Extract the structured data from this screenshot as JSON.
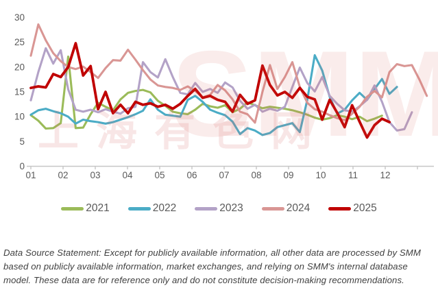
{
  "watermark": {
    "logo_text": "SMM",
    "cn_text": "上海有色网",
    "base_color_rgb": "214,106,104"
  },
  "footer": {
    "text": "Data Source Statement: Except for publicly available information, all other data are processed by SMM based on publicly available information, market exchanges, and relying on SMM's internal database model. These data are for reference only and do not constitute decision-making recommendations."
  },
  "chart_data": {
    "type": "line",
    "title": "",
    "xlabel": "",
    "ylabel": "",
    "grid": false,
    "legend_position": "bottom",
    "x_axis": {
      "labels": [
        "01",
        "02",
        "03",
        "04",
        "05",
        "06",
        "07",
        "08",
        "09",
        "10",
        "11",
        "12"
      ],
      "tick_color": "#c6c6c6",
      "label_color": "#595959"
    },
    "y_axis": {
      "min": 0,
      "max": 30,
      "ticks": [
        0,
        5,
        10,
        15,
        20,
        25,
        30
      ],
      "label_color": "#595959"
    },
    "series": [
      {
        "name": "2021",
        "color": "#9BBB59",
        "values": [
          10.3,
          9.2,
          7.6,
          7.7,
          8.7,
          22.1,
          7.7,
          7.8,
          10.5,
          12.8,
          12.0,
          11.3,
          13.5,
          14.8,
          15.2,
          15.4,
          14.9,
          13.2,
          12.2,
          11.0,
          10.7,
          10.5,
          11.4,
          12.6,
          12.1,
          11.8,
          12.3,
          10.9,
          11.6,
          12.9,
          12.3,
          11.7,
          12.0,
          11.8,
          11.6,
          11.3,
          10.9,
          10.4,
          9.8,
          9.4,
          9.7,
          10.3,
          10.0,
          9.5,
          10.0,
          9.1,
          9.6,
          10.2
        ]
      },
      {
        "name": "2022",
        "color": "#4BACC6",
        "values": [
          10.4,
          11.3,
          11.6,
          11.1,
          10.7,
          10.0,
          8.6,
          9.4,
          9.1,
          8.9,
          8.6,
          8.9,
          9.4,
          9.9,
          10.5,
          11.2,
          13.5,
          11.4,
          10.4,
          10.2,
          10.0,
          13.4,
          14.2,
          13.0,
          11.4,
          10.8,
          10.3,
          9.0,
          6.5,
          7.7,
          7.2,
          6.3,
          6.7,
          7.9,
          8.3,
          8.7,
          6.9,
          13.4,
          22.4,
          19.3,
          14.0,
          10.6,
          11.4,
          13.3,
          14.8,
          13.4,
          15.6,
          17.6,
          14.6,
          16.0
        ]
      },
      {
        "name": "2023",
        "color": "#B3A2C7",
        "values": [
          13.3,
          19.0,
          23.8,
          20.7,
          23.4,
          15.5,
          11.4,
          11.0,
          11.4,
          10.9,
          11.5,
          11.0,
          10.6,
          11.7,
          12.0,
          21.0,
          19.0,
          17.9,
          21.6,
          18.0,
          14.8,
          14.5,
          16.8,
          15.0,
          15.6,
          14.8,
          16.9,
          15.9,
          13.2,
          11.6,
          12.4,
          11.0,
          11.6,
          11.2,
          12.0,
          16.0,
          19.9,
          16.8,
          15.1,
          18.0,
          14.2,
          12.6,
          11.3,
          11.0,
          12.1,
          13.4,
          16.3,
          13.0,
          8.9,
          7.2,
          7.5,
          10.9
        ]
      },
      {
        "name": "2024",
        "color": "#D99694",
        "values": [
          22.3,
          28.6,
          25.4,
          22.8,
          21.2,
          20.0,
          19.6,
          20.1,
          19.0,
          17.8,
          19.8,
          21.4,
          21.3,
          23.5,
          21.5,
          19.4,
          17.5,
          16.3,
          16.0,
          15.8,
          15.4,
          16.1,
          15.2,
          13.9,
          14.4,
          16.4,
          15.3,
          13.5,
          11.0,
          10.5,
          8.8,
          15.0,
          20.4,
          15.6,
          18.0,
          21.0,
          16.0,
          12.8,
          11.5,
          11.0,
          10.3,
          9.7,
          9.3,
          10.6,
          12.0,
          14.0,
          15.2,
          13.9,
          19.0,
          20.6,
          20.2,
          20.4,
          17.5,
          14.2
        ]
      },
      {
        "name": "2025",
        "color": "#C00000",
        "values": [
          15.8,
          16.1,
          15.9,
          18.6,
          18.0,
          20.0,
          24.8,
          18.3,
          20.2,
          11.5,
          15.0,
          10.7,
          12.4,
          10.7,
          13.0,
          12.4,
          12.7,
          12.0,
          12.4,
          11.6,
          12.6,
          14.2,
          15.6,
          13.8,
          14.2,
          13.4,
          13.0,
          11.0,
          14.4,
          12.6,
          13.3,
          20.3,
          16.4,
          14.3,
          15.0,
          13.8,
          15.8,
          14.0,
          13.5,
          9.4,
          13.4,
          10.8,
          7.9,
          12.3,
          9.0,
          5.8,
          8.3,
          9.6,
          8.9
        ]
      }
    ]
  }
}
